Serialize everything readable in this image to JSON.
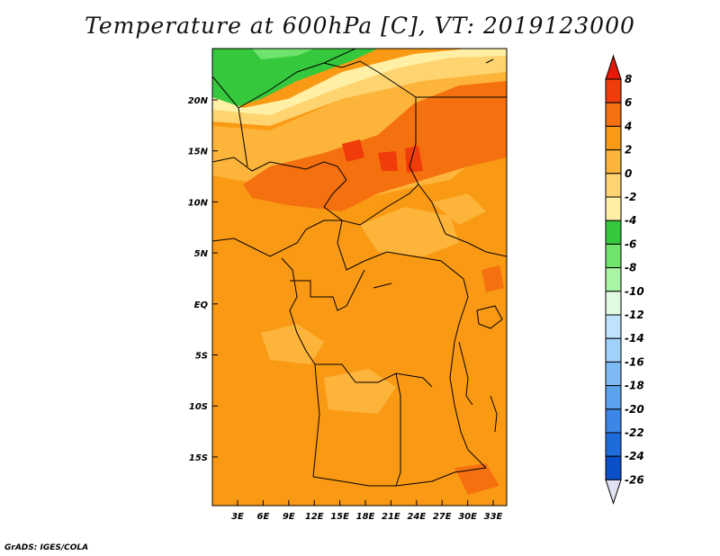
{
  "title": "Temperature at 600hPa [C], VT: 2019123000",
  "credit": "GrADS: IGES/COLA",
  "lat_labels": [
    "20N",
    "15N",
    "10N",
    "5N",
    "EQ",
    "5S",
    "10S",
    "15S"
  ],
  "lon_labels": [
    "3E",
    "6E",
    "9E",
    "12E",
    "15E",
    "18E",
    "21E",
    "24E",
    "27E",
    "30E",
    "33E"
  ],
  "colorbar": {
    "labels": [
      "8",
      "6",
      "4",
      "2",
      "0",
      "-2",
      "-4",
      "-6",
      "-8",
      "-10",
      "-12",
      "-14",
      "-16",
      "-18",
      "-20",
      "-22",
      "-24",
      "-26"
    ],
    "colors": [
      "#e5180a",
      "#f03c0a",
      "#f5700f",
      "#fa9a14",
      "#fdb43a",
      "#fed470",
      "#fff0a5",
      "#36c83c",
      "#6ee46c",
      "#a8f5a5",
      "#e1fae1",
      "#bfe3ff",
      "#a0d1fa",
      "#7dbaf5",
      "#5aa2ee",
      "#3b86e6",
      "#1e6cdc",
      "#0a50c8",
      "#06309f",
      "#e1e1f5"
    ]
  }
}
